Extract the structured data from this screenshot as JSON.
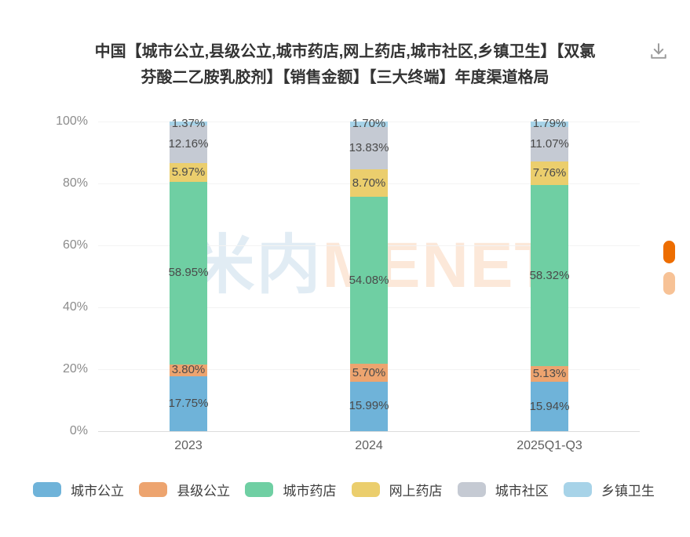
{
  "header": {
    "title_line1": "中国【城市公立,县级公立,城市药店,网上药店,城市社区,乡镇卫生】【双氯",
    "title_line2": "芬酸二乙胺乳胶剂】【销售金额】【三大终端】年度渠道格局"
  },
  "toolbar": {
    "download_icon": "download-icon"
  },
  "watermark": {
    "text_cn": "米内",
    "text_en": "MENET"
  },
  "chart_data": {
    "type": "bar",
    "stacked": true,
    "value_unit": "%",
    "bar_labels": true,
    "grid": true,
    "legend_position": "bottom",
    "categories": [
      "2023",
      "2024",
      "2025Q1-Q3"
    ],
    "series": [
      {
        "name": "城市公立",
        "color": "#6fb3d9",
        "values": [
          17.75,
          15.99,
          15.94
        ]
      },
      {
        "name": "县级公立",
        "color": "#eda46f",
        "values": [
          3.8,
          5.7,
          5.13
        ]
      },
      {
        "name": "城市药店",
        "color": "#6fcfa3",
        "values": [
          58.95,
          54.08,
          58.32
        ]
      },
      {
        "name": "网上药店",
        "color": "#ebce6d",
        "values": [
          5.97,
          8.7,
          7.76
        ]
      },
      {
        "name": "城市社区",
        "color": "#c5cad3",
        "values": [
          12.16,
          13.83,
          11.07
        ]
      },
      {
        "name": "乡镇卫生",
        "color": "#a7d3e8",
        "values": [
          1.37,
          1.7,
          1.79
        ]
      }
    ],
    "y_axis": {
      "min": 0,
      "max": 100,
      "tick_values": [
        0,
        20,
        40,
        60,
        80,
        100
      ],
      "tick_labels": [
        "0%",
        "20%",
        "40%",
        "60%",
        "80%",
        "100%"
      ]
    }
  },
  "scrollbar": {
    "active_color": "#ed6d00",
    "inactive_color": "#f7c296"
  }
}
